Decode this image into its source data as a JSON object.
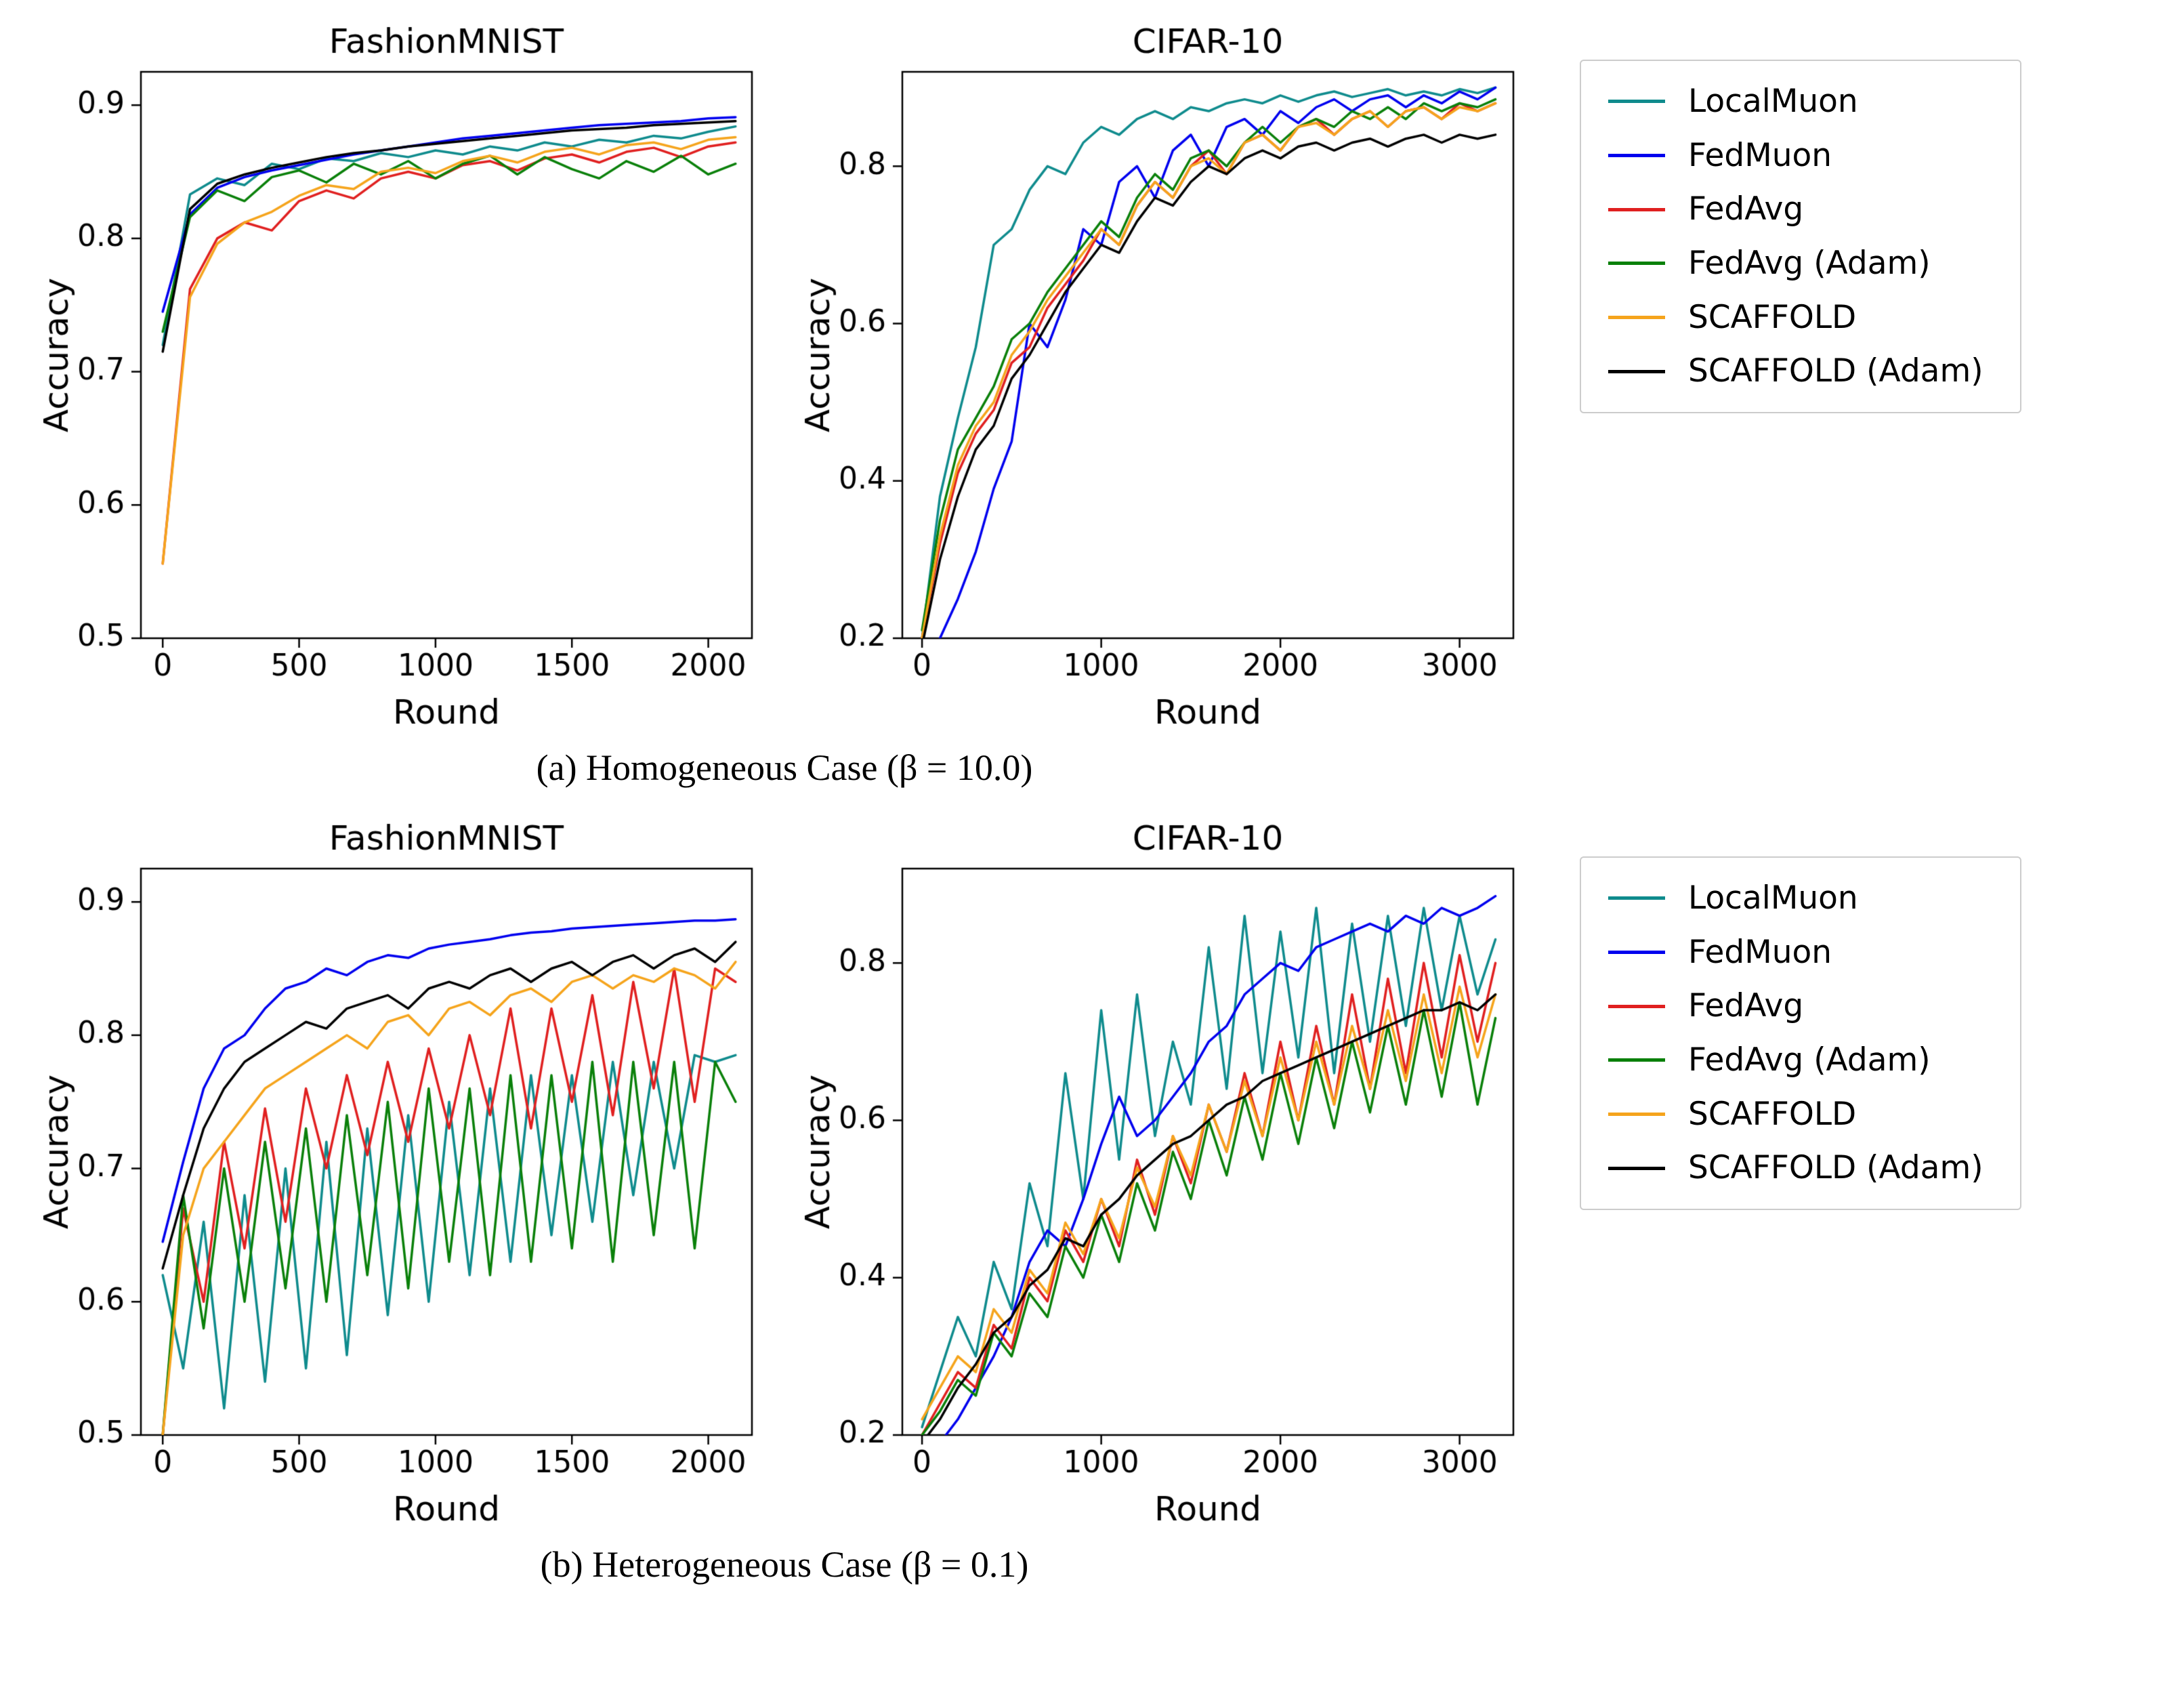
{
  "figure": {
    "background": "#ffffff",
    "captions": {
      "a": "(a) Homogeneous Case (β = 10.0)",
      "b": "(b) Heterogeneous Case (β = 0.1)"
    }
  },
  "colors": {
    "LocalMuon": "#0f8b8d",
    "FedMuon": "#0000ee",
    "FedAvg": "#e02020",
    "FedAvg (Adam)": "#0a800a",
    "SCAFFOLD": "#f5a41c",
    "SCAFFOLD (Adam)": "#000000"
  },
  "legend": {
    "items": [
      "LocalMuon",
      "FedMuon",
      "FedAvg",
      "FedAvg (Adam)",
      "SCAFFOLD",
      "SCAFFOLD (Adam)"
    ]
  },
  "chart_data": [
    {
      "id": "fashionmnist-homogeneous",
      "type": "line",
      "title": "FashionMNIST",
      "xlabel": "Round",
      "ylabel": "Accuracy",
      "xlim": [
        -80,
        2160
      ],
      "ylim": [
        0.5,
        0.925
      ],
      "xticks": [
        0,
        500,
        1000,
        1500,
        2000
      ],
      "yticks": [
        0.5,
        0.6,
        0.7,
        0.8,
        0.9
      ],
      "grid": false,
      "legend_position": "outside-right",
      "x": [
        0,
        100,
        200,
        300,
        400,
        500,
        600,
        700,
        800,
        900,
        1000,
        1100,
        1200,
        1300,
        1400,
        1500,
        1600,
        1700,
        1800,
        1900,
        2000,
        2100
      ],
      "series": [
        {
          "name": "LocalMuon",
          "values": [
            0.72,
            0.833,
            0.845,
            0.84,
            0.856,
            0.852,
            0.86,
            0.858,
            0.864,
            0.861,
            0.866,
            0.863,
            0.869,
            0.866,
            0.872,
            0.869,
            0.874,
            0.872,
            0.877,
            0.875,
            0.88,
            0.884
          ]
        },
        {
          "name": "FedMuon",
          "values": [
            0.745,
            0.818,
            0.838,
            0.846,
            0.851,
            0.855,
            0.859,
            0.863,
            0.866,
            0.869,
            0.872,
            0.875,
            0.877,
            0.879,
            0.881,
            0.883,
            0.885,
            0.886,
            0.887,
            0.888,
            0.89,
            0.891
          ]
        },
        {
          "name": "FedAvg",
          "values": [
            0.556,
            0.762,
            0.8,
            0.812,
            0.806,
            0.828,
            0.836,
            0.83,
            0.845,
            0.85,
            0.845,
            0.855,
            0.858,
            0.851,
            0.86,
            0.863,
            0.857,
            0.865,
            0.868,
            0.861,
            0.869,
            0.872
          ]
        },
        {
          "name": "FedAvg (Adam)",
          "values": [
            0.73,
            0.816,
            0.836,
            0.828,
            0.846,
            0.851,
            0.842,
            0.856,
            0.848,
            0.858,
            0.845,
            0.856,
            0.862,
            0.848,
            0.861,
            0.852,
            0.845,
            0.858,
            0.85,
            0.862,
            0.848,
            0.856
          ]
        },
        {
          "name": "SCAFFOLD",
          "values": [
            0.556,
            0.756,
            0.796,
            0.812,
            0.82,
            0.832,
            0.84,
            0.837,
            0.85,
            0.853,
            0.849,
            0.858,
            0.862,
            0.857,
            0.865,
            0.868,
            0.863,
            0.87,
            0.872,
            0.867,
            0.874,
            0.876
          ]
        },
        {
          "name": "SCAFFOLD (Adam)",
          "values": [
            0.715,
            0.822,
            0.841,
            0.848,
            0.853,
            0.857,
            0.861,
            0.864,
            0.866,
            0.869,
            0.871,
            0.873,
            0.875,
            0.877,
            0.879,
            0.881,
            0.882,
            0.883,
            0.885,
            0.886,
            0.887,
            0.888
          ]
        }
      ]
    },
    {
      "id": "cifar10-homogeneous",
      "type": "line",
      "title": "CIFAR-10",
      "xlabel": "Round",
      "ylabel": "Accuracy",
      "xlim": [
        -110,
        3300
      ],
      "ylim": [
        0.2,
        0.92
      ],
      "xticks": [
        0,
        1000,
        2000,
        3000
      ],
      "yticks": [
        0.2,
        0.4,
        0.6,
        0.8
      ],
      "grid": false,
      "legend_position": "outside-right",
      "x": [
        0,
        100,
        200,
        300,
        400,
        500,
        600,
        700,
        800,
        900,
        1000,
        1100,
        1200,
        1300,
        1400,
        1500,
        1600,
        1700,
        1800,
        1900,
        2000,
        2100,
        2200,
        2300,
        2400,
        2500,
        2600,
        2700,
        2800,
        2900,
        3000,
        3100,
        3200
      ],
      "series": [
        {
          "name": "LocalMuon",
          "values": [
            0.2,
            0.38,
            0.48,
            0.57,
            0.7,
            0.72,
            0.77,
            0.8,
            0.79,
            0.83,
            0.85,
            0.84,
            0.86,
            0.87,
            0.86,
            0.875,
            0.87,
            0.88,
            0.885,
            0.88,
            0.89,
            0.882,
            0.89,
            0.895,
            0.888,
            0.893,
            0.898,
            0.89,
            0.895,
            0.89,
            0.898,
            0.893,
            0.9
          ]
        },
        {
          "name": "FedMuon",
          "values": [
            0.17,
            0.2,
            0.25,
            0.31,
            0.39,
            0.45,
            0.6,
            0.57,
            0.63,
            0.72,
            0.7,
            0.78,
            0.8,
            0.76,
            0.82,
            0.84,
            0.8,
            0.85,
            0.86,
            0.84,
            0.87,
            0.855,
            0.875,
            0.885,
            0.87,
            0.885,
            0.89,
            0.875,
            0.89,
            0.88,
            0.895,
            0.885,
            0.9
          ]
        },
        {
          "name": "FedAvg",
          "values": [
            0.2,
            0.32,
            0.41,
            0.46,
            0.49,
            0.55,
            0.57,
            0.62,
            0.65,
            0.68,
            0.72,
            0.7,
            0.75,
            0.78,
            0.76,
            0.8,
            0.82,
            0.79,
            0.83,
            0.84,
            0.82,
            0.85,
            0.86,
            0.84,
            0.86,
            0.87,
            0.85,
            0.87,
            0.875,
            0.86,
            0.88,
            0.87,
            0.88
          ]
        },
        {
          "name": "FedAvg (Adam)",
          "values": [
            0.21,
            0.35,
            0.44,
            0.48,
            0.52,
            0.58,
            0.6,
            0.64,
            0.67,
            0.7,
            0.73,
            0.71,
            0.76,
            0.79,
            0.77,
            0.81,
            0.82,
            0.8,
            0.83,
            0.85,
            0.83,
            0.85,
            0.86,
            0.85,
            0.87,
            0.86,
            0.875,
            0.86,
            0.88,
            0.87,
            0.88,
            0.875,
            0.885
          ]
        },
        {
          "name": "SCAFFOLD",
          "values": [
            0.2,
            0.33,
            0.42,
            0.47,
            0.5,
            0.56,
            0.59,
            0.63,
            0.66,
            0.69,
            0.72,
            0.7,
            0.75,
            0.78,
            0.76,
            0.8,
            0.81,
            0.79,
            0.83,
            0.84,
            0.82,
            0.85,
            0.855,
            0.84,
            0.86,
            0.87,
            0.85,
            0.87,
            0.875,
            0.86,
            0.875,
            0.87,
            0.88
          ]
        },
        {
          "name": "SCAFFOLD (Adam)",
          "values": [
            0.19,
            0.3,
            0.38,
            0.44,
            0.47,
            0.53,
            0.56,
            0.6,
            0.64,
            0.67,
            0.7,
            0.69,
            0.73,
            0.76,
            0.75,
            0.78,
            0.8,
            0.79,
            0.81,
            0.82,
            0.81,
            0.825,
            0.83,
            0.82,
            0.83,
            0.835,
            0.825,
            0.835,
            0.84,
            0.83,
            0.84,
            0.835,
            0.84
          ]
        }
      ]
    },
    {
      "id": "fashionmnist-heterogeneous",
      "type": "line",
      "title": "FashionMNIST",
      "xlabel": "Round",
      "ylabel": "Accuracy",
      "xlim": [
        -80,
        2160
      ],
      "ylim": [
        0.5,
        0.925
      ],
      "xticks": [
        0,
        500,
        1000,
        1500,
        2000
      ],
      "yticks": [
        0.5,
        0.6,
        0.7,
        0.8,
        0.9
      ],
      "grid": false,
      "legend_position": "outside-right",
      "x": [
        0,
        75,
        150,
        225,
        300,
        375,
        450,
        525,
        600,
        675,
        750,
        825,
        900,
        975,
        1050,
        1125,
        1200,
        1275,
        1350,
        1425,
        1500,
        1575,
        1650,
        1725,
        1800,
        1875,
        1950,
        2025,
        2100
      ],
      "series": [
        {
          "name": "LocalMuon",
          "values": [
            0.62,
            0.55,
            0.66,
            0.52,
            0.68,
            0.54,
            0.7,
            0.55,
            0.72,
            0.56,
            0.73,
            0.59,
            0.74,
            0.6,
            0.75,
            0.62,
            0.76,
            0.63,
            0.77,
            0.65,
            0.77,
            0.66,
            0.78,
            0.68,
            0.78,
            0.7,
            0.785,
            0.78,
            0.785
          ]
        },
        {
          "name": "FedMuon",
          "values": [
            0.645,
            0.705,
            0.76,
            0.79,
            0.8,
            0.82,
            0.835,
            0.84,
            0.85,
            0.845,
            0.855,
            0.86,
            0.858,
            0.865,
            0.868,
            0.87,
            0.872,
            0.875,
            0.877,
            0.878,
            0.88,
            0.881,
            0.882,
            0.883,
            0.884,
            0.885,
            0.886,
            0.886,
            0.887
          ]
        },
        {
          "name": "FedAvg",
          "values": [
            0.5,
            0.67,
            0.6,
            0.72,
            0.64,
            0.745,
            0.66,
            0.76,
            0.7,
            0.77,
            0.71,
            0.78,
            0.72,
            0.79,
            0.73,
            0.8,
            0.74,
            0.82,
            0.73,
            0.82,
            0.75,
            0.83,
            0.74,
            0.84,
            0.76,
            0.85,
            0.75,
            0.85,
            0.84
          ]
        },
        {
          "name": "FedAvg (Adam)",
          "values": [
            0.5,
            0.68,
            0.58,
            0.7,
            0.6,
            0.72,
            0.61,
            0.73,
            0.6,
            0.74,
            0.62,
            0.75,
            0.61,
            0.76,
            0.63,
            0.76,
            0.62,
            0.77,
            0.63,
            0.77,
            0.64,
            0.78,
            0.63,
            0.78,
            0.65,
            0.78,
            0.64,
            0.78,
            0.75
          ]
        },
        {
          "name": "SCAFFOLD",
          "values": [
            0.5,
            0.65,
            0.7,
            0.72,
            0.74,
            0.76,
            0.77,
            0.78,
            0.79,
            0.8,
            0.79,
            0.81,
            0.815,
            0.8,
            0.82,
            0.825,
            0.815,
            0.83,
            0.835,
            0.825,
            0.84,
            0.845,
            0.835,
            0.845,
            0.84,
            0.85,
            0.845,
            0.835,
            0.855
          ]
        },
        {
          "name": "SCAFFOLD (Adam)",
          "values": [
            0.625,
            0.68,
            0.73,
            0.76,
            0.78,
            0.79,
            0.8,
            0.81,
            0.805,
            0.82,
            0.825,
            0.83,
            0.82,
            0.835,
            0.84,
            0.835,
            0.845,
            0.85,
            0.84,
            0.85,
            0.855,
            0.845,
            0.855,
            0.86,
            0.85,
            0.86,
            0.865,
            0.855,
            0.87
          ]
        }
      ]
    },
    {
      "id": "cifar10-heterogeneous",
      "type": "line",
      "title": "CIFAR-10",
      "xlabel": "Round",
      "ylabel": "Accuracy",
      "xlim": [
        -110,
        3300
      ],
      "ylim": [
        0.2,
        0.92
      ],
      "xticks": [
        0,
        1000,
        2000,
        3000
      ],
      "yticks": [
        0.2,
        0.4,
        0.6,
        0.8
      ],
      "grid": false,
      "legend_position": "outside-right",
      "x": [
        0,
        100,
        200,
        300,
        400,
        500,
        600,
        700,
        800,
        900,
        1000,
        1100,
        1200,
        1300,
        1400,
        1500,
        1600,
        1700,
        1800,
        1900,
        2000,
        2100,
        2200,
        2300,
        2400,
        2500,
        2600,
        2700,
        2800,
        2900,
        3000,
        3100,
        3200
      ],
      "series": [
        {
          "name": "LocalMuon",
          "values": [
            0.21,
            0.28,
            0.35,
            0.3,
            0.42,
            0.36,
            0.52,
            0.44,
            0.66,
            0.5,
            0.74,
            0.55,
            0.76,
            0.58,
            0.7,
            0.62,
            0.82,
            0.64,
            0.86,
            0.66,
            0.84,
            0.68,
            0.87,
            0.66,
            0.85,
            0.7,
            0.86,
            0.72,
            0.87,
            0.74,
            0.86,
            0.76,
            0.83
          ]
        },
        {
          "name": "FedMuon",
          "values": [
            0.17,
            0.19,
            0.22,
            0.26,
            0.3,
            0.35,
            0.42,
            0.46,
            0.44,
            0.5,
            0.57,
            0.63,
            0.58,
            0.6,
            0.63,
            0.66,
            0.7,
            0.72,
            0.76,
            0.78,
            0.8,
            0.79,
            0.82,
            0.83,
            0.84,
            0.85,
            0.84,
            0.86,
            0.85,
            0.87,
            0.86,
            0.87,
            0.885
          ]
        },
        {
          "name": "FedAvg",
          "values": [
            0.2,
            0.24,
            0.28,
            0.26,
            0.34,
            0.31,
            0.4,
            0.37,
            0.46,
            0.42,
            0.5,
            0.44,
            0.55,
            0.48,
            0.58,
            0.52,
            0.62,
            0.56,
            0.66,
            0.58,
            0.7,
            0.6,
            0.72,
            0.62,
            0.76,
            0.64,
            0.78,
            0.66,
            0.8,
            0.68,
            0.81,
            0.7,
            0.8
          ]
        },
        {
          "name": "FedAvg (Adam)",
          "values": [
            0.2,
            0.23,
            0.27,
            0.25,
            0.33,
            0.3,
            0.38,
            0.35,
            0.44,
            0.4,
            0.48,
            0.42,
            0.52,
            0.46,
            0.56,
            0.5,
            0.6,
            0.53,
            0.63,
            0.55,
            0.66,
            0.57,
            0.68,
            0.59,
            0.7,
            0.61,
            0.72,
            0.62,
            0.74,
            0.63,
            0.75,
            0.62,
            0.73
          ]
        },
        {
          "name": "SCAFFOLD",
          "values": [
            0.22,
            0.26,
            0.3,
            0.28,
            0.36,
            0.33,
            0.41,
            0.38,
            0.47,
            0.43,
            0.5,
            0.45,
            0.54,
            0.49,
            0.58,
            0.53,
            0.62,
            0.56,
            0.65,
            0.58,
            0.68,
            0.6,
            0.7,
            0.62,
            0.72,
            0.64,
            0.74,
            0.65,
            0.76,
            0.66,
            0.77,
            0.68,
            0.76
          ]
        },
        {
          "name": "SCAFFOLD (Adam)",
          "values": [
            0.19,
            0.22,
            0.26,
            0.29,
            0.33,
            0.35,
            0.39,
            0.41,
            0.45,
            0.44,
            0.48,
            0.5,
            0.53,
            0.55,
            0.57,
            0.58,
            0.6,
            0.62,
            0.63,
            0.65,
            0.66,
            0.67,
            0.68,
            0.69,
            0.7,
            0.71,
            0.72,
            0.73,
            0.74,
            0.74,
            0.75,
            0.74,
            0.76
          ]
        }
      ]
    }
  ]
}
